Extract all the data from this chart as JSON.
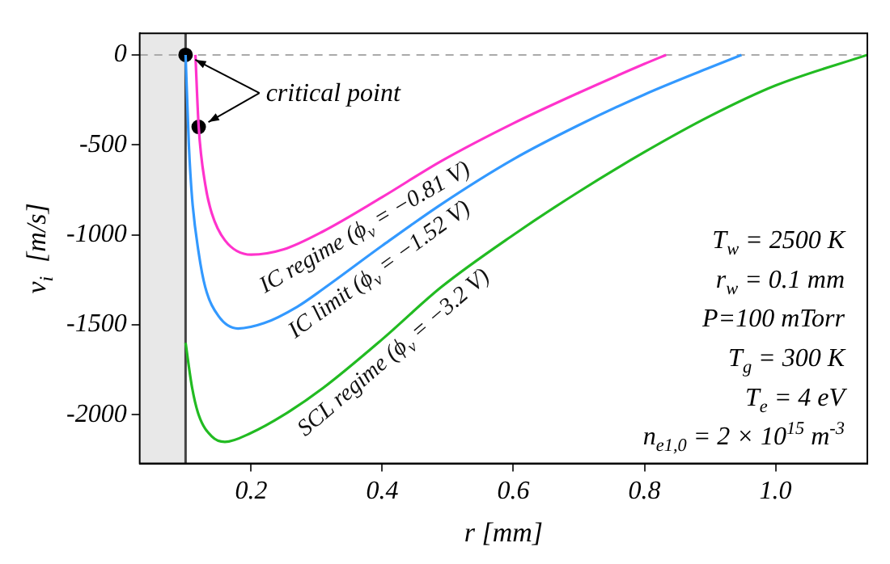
{
  "chart_data": {
    "type": "line",
    "xlabel": "r [mm]",
    "ylabel": "v$_{i}$  [m/s]",
    "xlim": [
      0.03,
      1.14
    ],
    "ylim": [
      -2270,
      120
    ],
    "xticks": [
      0.2,
      0.4,
      0.6,
      0.8,
      {
        "value": 1.0,
        "label": "1.0"
      }
    ],
    "yticks": [
      0,
      -500,
      -1000,
      -1500,
      -2000
    ],
    "grid": false,
    "legend": false,
    "marker": "none",
    "line_style": "solid",
    "series": [
      {
        "name": "IC regime (ϕ$_{v}$ = −0.81 V)",
        "color": "#ff33cc",
        "x": [
          0.115,
          0.12,
          0.13,
          0.14,
          0.16,
          0.2,
          0.25,
          0.31,
          0.4,
          0.49,
          0.6,
          0.7,
          0.8,
          0.833
        ],
        "values": [
          0,
          -400,
          -720,
          -880,
          -1030,
          -1110,
          -1080,
          -980,
          -790,
          -590,
          -380,
          -210,
          -50,
          0
        ]
      },
      {
        "name": "IC limit (ϕ$_{v}$ = −1.52 V)",
        "color": "#3399ff",
        "x": [
          0.1,
          0.105,
          0.11,
          0.12,
          0.13,
          0.15,
          0.18,
          0.22,
          0.27,
          0.31,
          0.4,
          0.49,
          0.6,
          0.7,
          0.8,
          0.9,
          0.948
        ],
        "values": [
          0,
          -500,
          -800,
          -1100,
          -1290,
          -1450,
          -1520,
          -1490,
          -1400,
          -1300,
          -1060,
          -830,
          -580,
          -390,
          -220,
          -70,
          0
        ]
      },
      {
        "name": "SCL regime (ϕ$_{v}$ = −3.2 V)",
        "color": "#22bb22",
        "x": [
          0.1,
          0.11,
          0.12,
          0.14,
          0.16,
          0.2,
          0.25,
          0.31,
          0.4,
          0.49,
          0.6,
          0.7,
          0.8,
          0.9,
          1.0,
          1.14
        ],
        "values": [
          -1600,
          -1850,
          -2000,
          -2120,
          -2150,
          -2100,
          -2000,
          -1850,
          -1580,
          -1290,
          -1000,
          -760,
          -540,
          -340,
          -170,
          0
        ]
      },
      {
        "type": "scatter",
        "color": "#000000",
        "marker": "circle",
        "x": [
          0.1,
          0.12
        ],
        "values": [
          0,
          -400
        ]
      }
    ],
    "bands": [
      {
        "axis": "x",
        "from": 0.03,
        "to": 0.1,
        "color": "#e8e8e8"
      }
    ],
    "ref_lines": [
      {
        "axis": "x",
        "value": 0.1,
        "color": "#444444",
        "line_style": "solid"
      },
      {
        "axis": "y",
        "value": 0,
        "color": "#aaaaaa",
        "line_style": "dashed"
      }
    ],
    "annotations": [
      {
        "text": "critical point",
        "x": 0.1,
        "y": 0
      },
      "T$_{w}$ = 2500 K",
      "r$_{w}$ = 0.1 mm",
      "P=100 mTorr",
      "T$_{g}$ = 300 K",
      "T$_{e}$ = 4 eV",
      "n$_{e1,0}$ = 2 × 10$^{15}$ m$^{-3}$"
    ]
  }
}
